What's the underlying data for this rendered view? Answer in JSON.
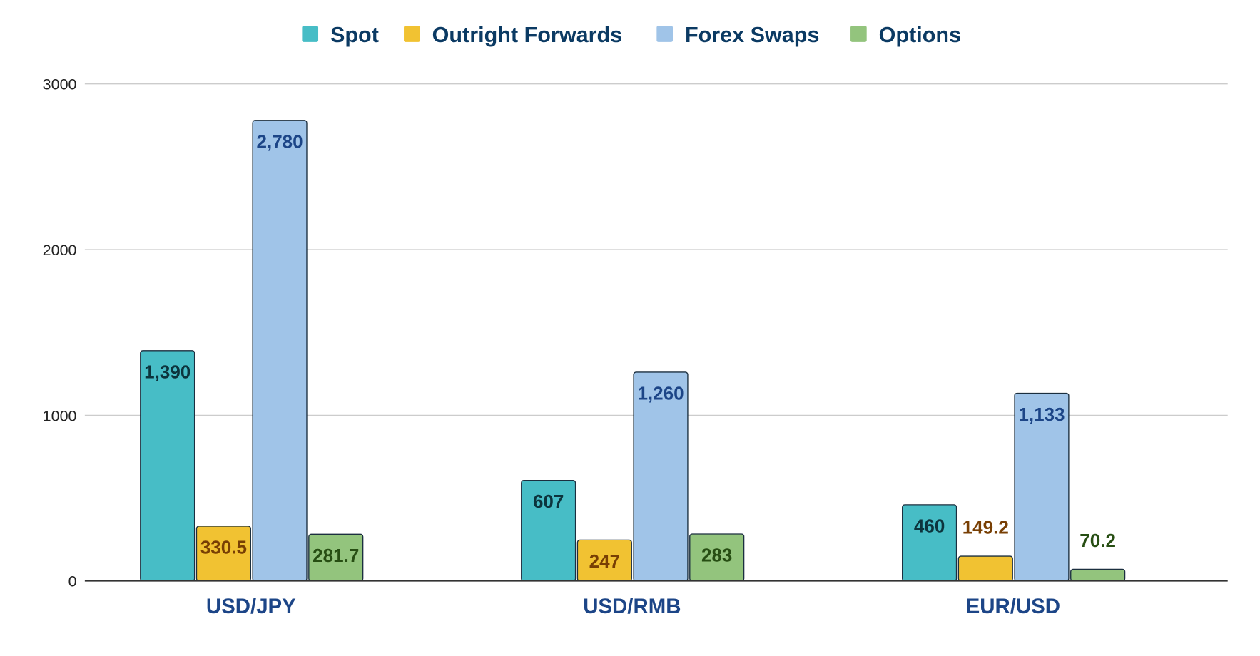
{
  "chart_data": {
    "type": "bar",
    "title": "",
    "xlabel": "",
    "ylabel": "",
    "categories": [
      "USD/JPY",
      "USD/RMB",
      "EUR/USD"
    ],
    "series": [
      {
        "name": "Spot",
        "values": [
          1390,
          607,
          460
        ],
        "labels": [
          "1,390",
          "607",
          "460"
        ],
        "color": "#47bdc6",
        "label_color": "#0c343d"
      },
      {
        "name": "Outright Forwards",
        "values": [
          330.5,
          247,
          149.2
        ],
        "labels": [
          "330.5",
          "247",
          "149.2"
        ],
        "color": "#f1c232",
        "label_color": "#783f04"
      },
      {
        "name": "Forex Swaps",
        "values": [
          2780,
          1260,
          1133
        ],
        "labels": [
          "2,780",
          "1,260",
          "1,133"
        ],
        "color": "#a0c4e8",
        "label_color": "#1c4587"
      },
      {
        "name": "Options",
        "values": [
          281.7,
          283,
          70.2
        ],
        "labels": [
          "281.7",
          "283",
          "70.2"
        ],
        "color": "#93c47d",
        "label_color": "#274e13"
      }
    ],
    "ylim": [
      0,
      3000
    ],
    "yticks": [
      "0",
      "1000",
      "2000",
      "3000"
    ],
    "grid": true,
    "legend_position": "top",
    "legend_text_color": "#0b3a63",
    "category_label_color": "#1c4587"
  }
}
